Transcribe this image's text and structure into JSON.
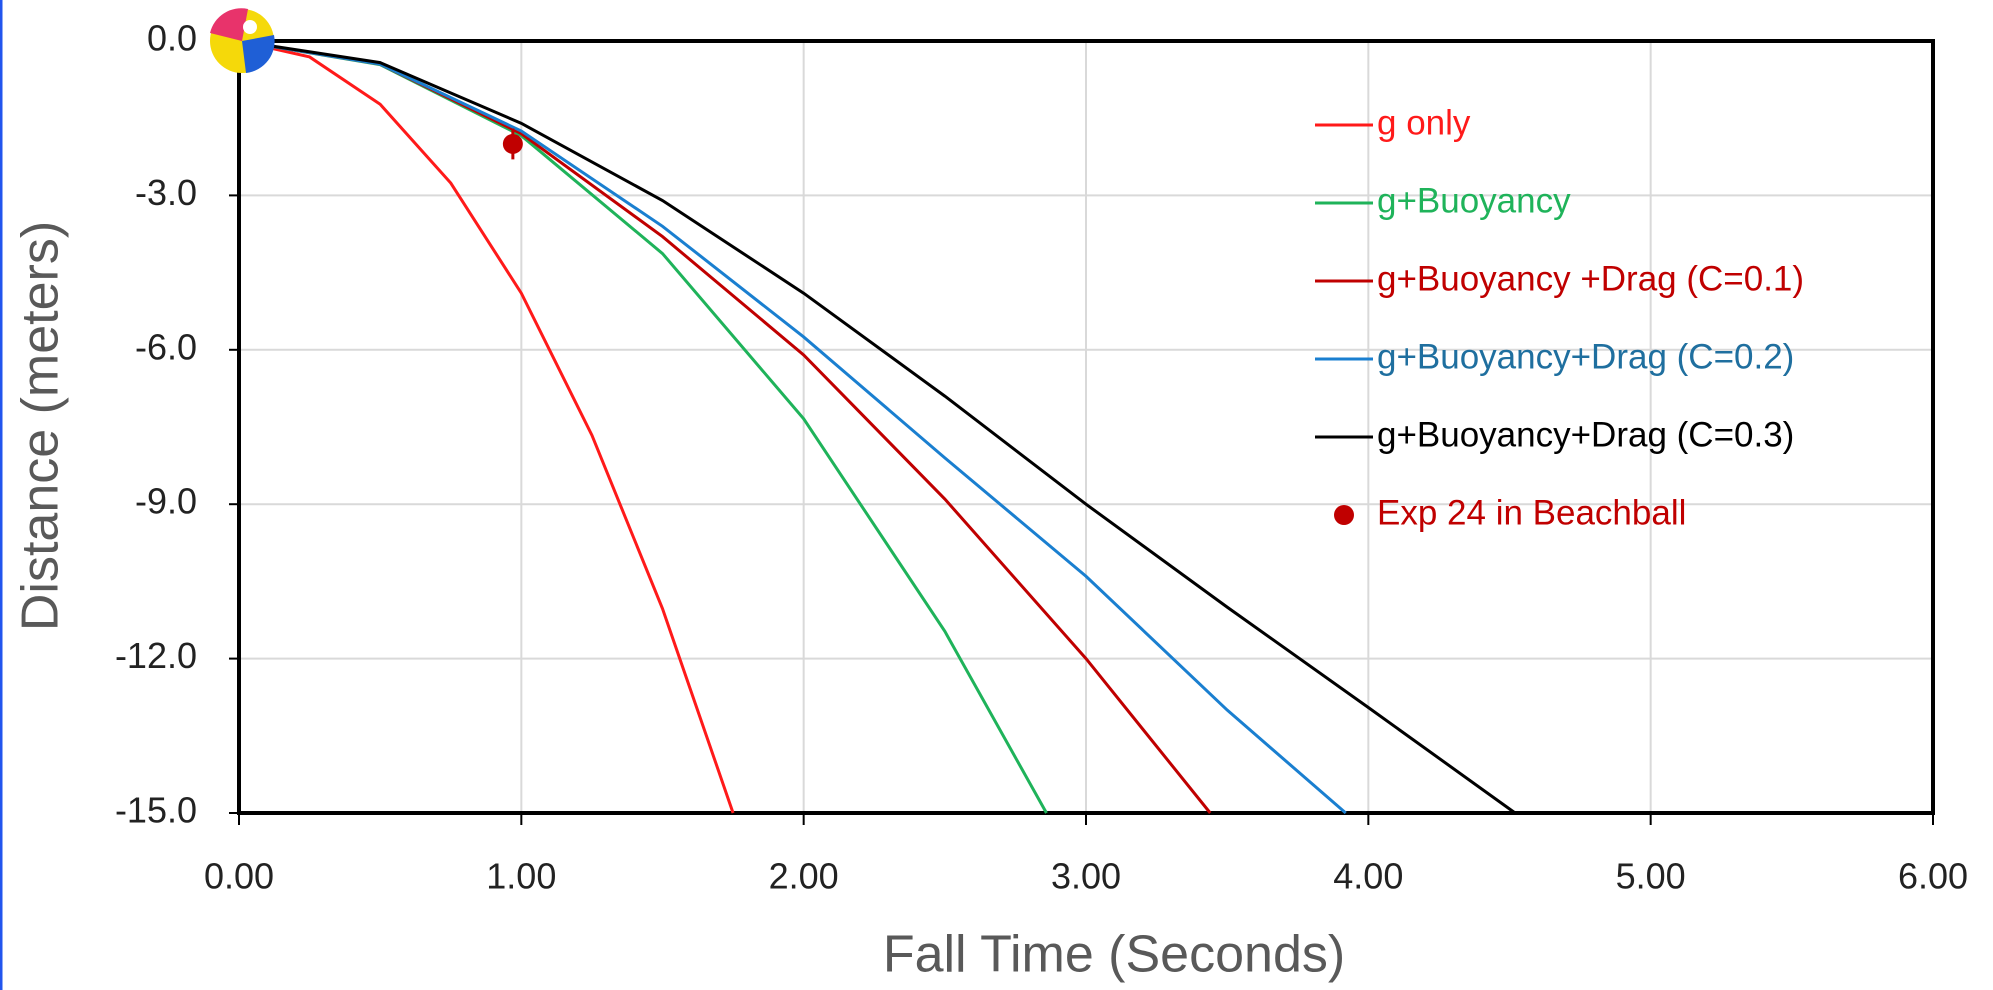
{
  "chart_data": {
    "type": "line",
    "xlabel": "Fall Time (Seconds)",
    "ylabel": "Distance (meters)",
    "xlim": [
      0,
      6
    ],
    "ylim": [
      -15,
      0
    ],
    "xticks": [
      {
        "value": 0,
        "label": "0.00"
      },
      {
        "value": 1,
        "label": "1.00"
      },
      {
        "value": 2,
        "label": "2.00"
      },
      {
        "value": 3,
        "label": "3.00"
      },
      {
        "value": 4,
        "label": "4.00"
      },
      {
        "value": 5,
        "label": "5.00"
      },
      {
        "value": 6,
        "label": "6.00"
      }
    ],
    "yticks": [
      {
        "value": 0,
        "label": "0.0"
      },
      {
        "value": -3,
        "label": "-3.0"
      },
      {
        "value": -6,
        "label": "-6.0"
      },
      {
        "value": -9,
        "label": "-9.0"
      },
      {
        "value": -12,
        "label": "-12.0"
      },
      {
        "value": -15,
        "label": "-15.0"
      }
    ],
    "grid": true,
    "legend": "upper right",
    "series": [
      {
        "name": "g only",
        "color": "#ff1a1a",
        "x": [
          0,
          0.25,
          0.5,
          0.75,
          1.0,
          1.25,
          1.5,
          1.75
        ],
        "values": [
          0,
          -0.31,
          -1.23,
          -2.76,
          -4.9,
          -7.66,
          -11.03,
          -15.0
        ]
      },
      {
        "name": "g+Buoyancy",
        "color": "#1fb35a",
        "x": [
          0,
          0.5,
          1.0,
          1.5,
          2.0,
          2.5,
          2.86
        ],
        "values": [
          0,
          -0.46,
          -1.84,
          -4.13,
          -7.34,
          -11.47,
          -15.0
        ]
      },
      {
        "name": "g+Buoyancy +Drag (C=0.1)",
        "color": "#c00000",
        "x": [
          0,
          0.5,
          1.0,
          1.5,
          2.0,
          2.5,
          3.0,
          3.44
        ],
        "values": [
          0,
          -0.45,
          -1.8,
          -3.8,
          -6.1,
          -8.9,
          -12.0,
          -15.0
        ]
      },
      {
        "name": "g+Buoyancy+Drag (C=0.2)",
        "color": "#1a7fd0",
        "x": [
          0,
          0.5,
          1.0,
          1.5,
          2.0,
          2.5,
          3.0,
          3.5,
          3.92
        ],
        "values": [
          0,
          -0.45,
          -1.75,
          -3.6,
          -5.75,
          -8.1,
          -10.4,
          -13.0,
          -15.0
        ]
      },
      {
        "name": "g+Buoyancy+Drag (C=0.3)",
        "color": "#000000",
        "x": [
          0,
          0.5,
          1.0,
          1.5,
          2.0,
          2.5,
          3.0,
          3.5,
          4.0,
          4.52
        ],
        "values": [
          0,
          -0.42,
          -1.6,
          -3.1,
          -4.9,
          -6.9,
          -9.0,
          -11.0,
          -12.95,
          -15.0
        ]
      },
      {
        "name": "Exp 24 in Beachball",
        "color": "#c00000",
        "type": "scatter",
        "x": [
          0.97
        ],
        "values": [
          -2.0
        ],
        "errors": [
          0.3
        ]
      }
    ]
  }
}
